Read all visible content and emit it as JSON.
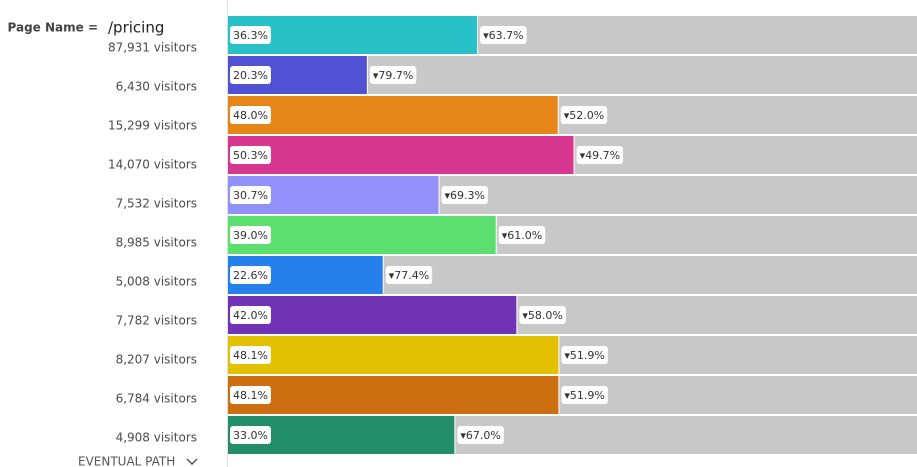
{
  "chart_data": {
    "type": "bar",
    "orientation": "horizontal",
    "stacked": true,
    "filter_label": "Page Name =",
    "filter_value": "/pricing",
    "footer": "EVENTUAL PATH",
    "categories": [
      "87,931 visitors",
      "6,430 visitors",
      "15,299 visitors",
      "14,070 visitors",
      "7,532 visitors",
      "8,985 visitors",
      "5,008 visitors",
      "7,782 visitors",
      "8,207 visitors",
      "6,784 visitors",
      "4,908 visitors"
    ],
    "xlim": [
      0,
      100
    ],
    "series": [
      {
        "colors": [
          "#29c1c8",
          "#5151d3",
          "#e68619",
          "#d83790",
          "#9191f9",
          "#5be06f",
          "#2680eb",
          "#7033b5",
          "#e1c100",
          "#cb6f10",
          "#248e6b"
        ],
        "values": [
          36.3,
          20.3,
          48.0,
          50.3,
          30.7,
          39.0,
          22.6,
          42.0,
          48.1,
          48.1,
          33.0
        ],
        "value_labels": [
          "36.3%",
          "20.3%",
          "48.0%",
          "50.3%",
          "30.7%",
          "39.0%",
          "22.6%",
          "42.0%",
          "48.1%",
          "48.1%",
          "33.0%"
        ]
      },
      {
        "color": "#c8c8c8",
        "values": [
          63.7,
          79.7,
          52.0,
          49.7,
          69.3,
          61.0,
          77.4,
          58.0,
          51.9,
          51.9,
          67.0
        ],
        "value_labels": [
          "▾63.7%",
          "▾79.7%",
          "▾52.0%",
          "▾49.7%",
          "▾69.3%",
          "▾61.0%",
          "▾77.4%",
          "▾58.0%",
          "▾51.9%",
          "▾51.9%",
          "▾67.0%"
        ]
      }
    ]
  }
}
